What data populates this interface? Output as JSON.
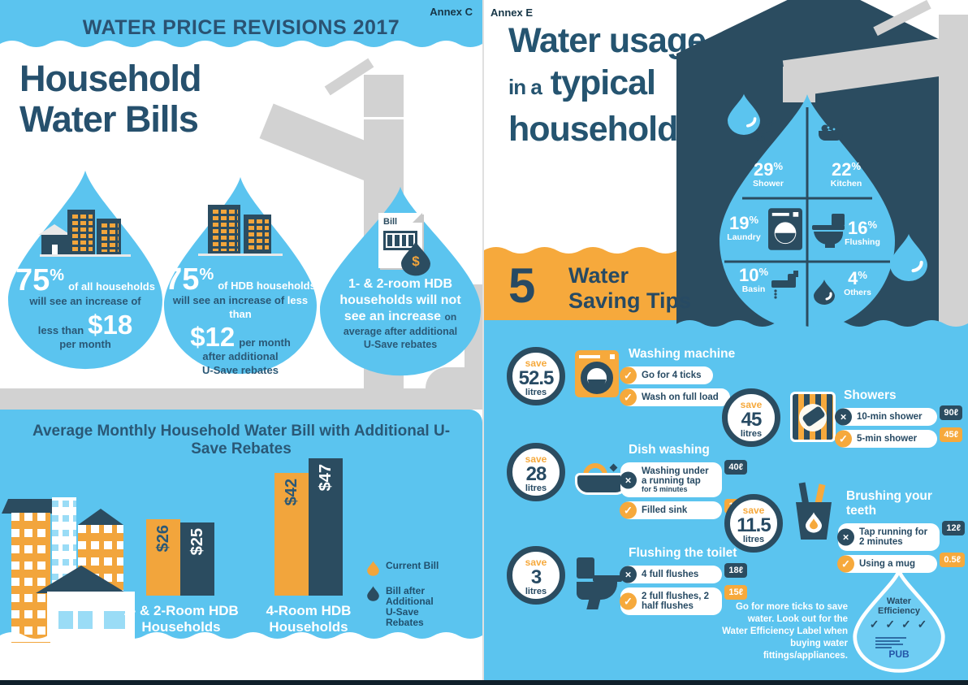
{
  "colors": {
    "blue": "#5bc4ef",
    "navy": "#2b4c60",
    "orange": "#f6a93c",
    "gray": "#d2d2d2",
    "text_navy": "#2a5876"
  },
  "icons": {
    "check": "✓",
    "cross": "×",
    "dollar": "$"
  },
  "left": {
    "annex": "Annex C",
    "header_title": "WATER PRICE REVISIONS 2017",
    "title_line1": "Household",
    "title_line2": "Water Bills",
    "drop1": {
      "pct": "75",
      "pct_sym": "%",
      "lead": "of all households",
      "line2": "will see an increase of",
      "pre": "less than",
      "amount": "$18",
      "post": "per month"
    },
    "drop2": {
      "pct": "75",
      "pct_sym": "%",
      "lead": "of HDB households",
      "line2": "will see an increase of",
      "line2_highlight": "less than",
      "amount": "$12",
      "amount_post": "per month",
      "tail1": "after additional",
      "tail2": "U-Save rebates"
    },
    "drop3": {
      "bill_label": "Bill",
      "white1": "1- & 2-room HDB",
      "white2": "households will not",
      "white3": "see an increase",
      "navy_inline": "on",
      "navy1": "average after additional",
      "navy2": "U-Save rebates"
    },
    "chart": {
      "title": "Average Monthly Household Water Bill with Additional U-Save Rebates",
      "groups": [
        {
          "label": "1- & 2-Room HDB Households",
          "current_label": "$26",
          "current_value": 26,
          "after_label": "$25",
          "after_value": 25
        },
        {
          "label": "4-Room HDB Households",
          "current_label": "$42",
          "current_value": 42,
          "after_label": "$47",
          "after_value": 47
        }
      ],
      "legend": [
        {
          "label": "Current Bill"
        },
        {
          "label": "Bill after Additional U-Save Rebates"
        }
      ]
    }
  },
  "right": {
    "annex": "Annex E",
    "title_line1": "Water usage",
    "title_line2_small": "in a",
    "title_line2_big": "typical",
    "title_line3": "household",
    "usage": [
      {
        "pct": "29",
        "label": "Shower"
      },
      {
        "pct": "22",
        "label": "Kitchen"
      },
      {
        "pct": "19",
        "label": "Laundry"
      },
      {
        "pct": "16",
        "label": "Flushing"
      },
      {
        "pct": "10",
        "label": "Basin"
      },
      {
        "pct": "4",
        "label": "Others"
      }
    ],
    "banner": {
      "number": "5",
      "line1": "Water",
      "line2": "Saving Tips"
    },
    "tips": [
      {
        "save_word": "save",
        "amount": "52.5",
        "unit": "litres",
        "title": "Washing machine",
        "rows": [
          {
            "good": true,
            "text": "Go for 4 ticks"
          },
          {
            "good": true,
            "text": "Wash on full load"
          }
        ]
      },
      {
        "save_word": "save",
        "amount": "45",
        "unit": "litres",
        "title": "Showers",
        "rows": [
          {
            "good": false,
            "text": "10-min shower",
            "value": "90ℓ"
          },
          {
            "good": true,
            "text": "5-min shower",
            "value": "45ℓ"
          }
        ]
      },
      {
        "save_word": "save",
        "amount": "28",
        "unit": "litres",
        "title": "Dish washing",
        "rows": [
          {
            "good": false,
            "text": "Washing under a running tap",
            "sub": "for 5 minutes",
            "value": "40ℓ"
          },
          {
            "good": true,
            "text": "Filled sink",
            "value": "12ℓ"
          }
        ]
      },
      {
        "save_word": "save",
        "amount": "11.5",
        "unit": "litres",
        "title": "Brushing your teeth",
        "rows": [
          {
            "good": false,
            "text": "Tap running for 2 minutes",
            "value": "12ℓ"
          },
          {
            "good": true,
            "text": "Using a mug",
            "value": "0.5ℓ"
          }
        ]
      },
      {
        "save_word": "save",
        "amount": "3",
        "unit": "litres",
        "title": "Flushing the toilet",
        "rows": [
          {
            "good": false,
            "text": "4 full flushes",
            "value": "18ℓ"
          },
          {
            "good": true,
            "text": "2 full flushes, 2 half flushes",
            "value": "15ℓ"
          }
        ]
      }
    ],
    "footer_note": "Go for more ticks to save water. Look out for the Water Efficiency Label when buying water fittings/appliances.",
    "wels": {
      "title_line1": "Water",
      "title_line2": "Efficiency",
      "ticks": "✓ ✓ ✓ ✓",
      "brand": "PUB"
    }
  },
  "chart_data": [
    {
      "type": "bar",
      "title": "Average Monthly Household Water Bill with Additional U-Save Rebates",
      "categories": [
        "1- & 2-Room HDB Households",
        "4-Room HDB Households"
      ],
      "series": [
        {
          "name": "Current Bill",
          "values": [
            26,
            42
          ]
        },
        {
          "name": "Bill after Additional U-Save Rebates",
          "values": [
            25,
            47
          ]
        }
      ],
      "value_labels": [
        "$26",
        "$25",
        "$42",
        "$47"
      ],
      "unit": "$ per month",
      "ylim": [
        0,
        50
      ],
      "grid": false,
      "legend_position": "right"
    },
    {
      "type": "pie",
      "title": "Water usage in a typical household",
      "categories": [
        "Shower",
        "Kitchen",
        "Laundry",
        "Flushing",
        "Basin",
        "Others"
      ],
      "values": [
        29,
        22,
        19,
        16,
        10,
        4
      ],
      "unit": "%"
    }
  ]
}
